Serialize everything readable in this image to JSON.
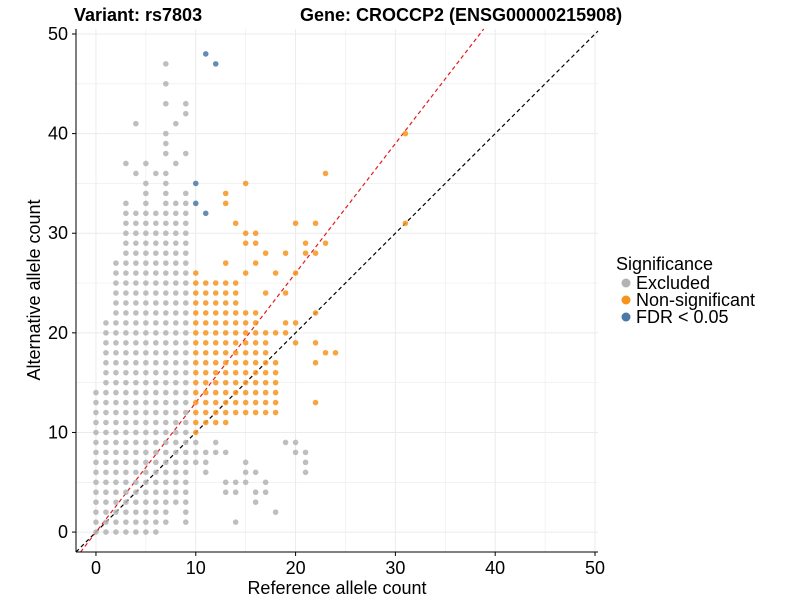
{
  "chart_data": {
    "type": "scatter",
    "title_left": "Variant: rs7803",
    "title_right": "Gene: CROCCP2 (ENSG00000215908)",
    "xlabel": "Reference allele count",
    "ylabel": "Alternative allele count",
    "xlim": [
      -2,
      50.3
    ],
    "ylim": [
      -2,
      50.5
    ],
    "xticks": [
      0,
      10,
      20,
      30,
      40,
      50
    ],
    "yticks": [
      0,
      10,
      20,
      30,
      40,
      50
    ],
    "grid": true,
    "legend": {
      "title": "Significance",
      "placement": "right",
      "entries": [
        {
          "label": "Excluded",
          "color": "#b3b3b3"
        },
        {
          "label": "Non-significant",
          "color": "#f7941d"
        },
        {
          "label": "FDR < 0.05",
          "color": "#4a78a8"
        }
      ]
    },
    "reference_lines": [
      {
        "name": "y = x",
        "color": "#000000",
        "slope": 1,
        "intercept": 0
      },
      {
        "name": "ratio",
        "color": "#e41a1c",
        "slope": 1.3,
        "intercept": 0
      }
    ],
    "series": [
      {
        "name": "Excluded",
        "color": "#b3b3b3",
        "columns": [
          {
            "x": 0,
            "y_min": 0,
            "y_max": 14
          },
          {
            "x": 1,
            "y_min": 0,
            "y_max": 21
          },
          {
            "x": 2,
            "y_min": 0,
            "y_max": 27
          },
          {
            "x": 3,
            "y_min": 0,
            "y_max": 33
          },
          {
            "x": 4,
            "y_min": 0,
            "y_max": 32
          },
          {
            "x": 5,
            "y_min": 0,
            "y_max": 35
          },
          {
            "x": 6,
            "y_min": 0,
            "y_max": 32
          },
          {
            "x": 7,
            "y_min": 1,
            "y_max": 36
          },
          {
            "x": 8,
            "y_min": 3,
            "y_max": 33
          },
          {
            "x": 9,
            "y_min": 1,
            "y_max": 34
          }
        ],
        "extra_points": [
          [
            0,
            6
          ],
          [
            1,
            9
          ],
          [
            3,
            37
          ],
          [
            4,
            41
          ],
          [
            4,
            36
          ],
          [
            5,
            37
          ],
          [
            6,
            0
          ],
          [
            6,
            36
          ],
          [
            7,
            47
          ],
          [
            7,
            45
          ],
          [
            7,
            43
          ],
          [
            7,
            40
          ],
          [
            7,
            39
          ],
          [
            7,
            38
          ],
          [
            9,
            43
          ],
          [
            9,
            42
          ],
          [
            9,
            38
          ],
          [
            8,
            37
          ],
          [
            8,
            41
          ],
          [
            9,
            1
          ],
          [
            10,
            9
          ],
          [
            10,
            8
          ],
          [
            11,
            8
          ],
          [
            11,
            7
          ],
          [
            12,
            9
          ],
          [
            12,
            8
          ],
          [
            13,
            8
          ],
          [
            13,
            5
          ],
          [
            13,
            4
          ],
          [
            14,
            1
          ],
          [
            14,
            4
          ],
          [
            14,
            5
          ],
          [
            15,
            7
          ],
          [
            15,
            6
          ],
          [
            15,
            5
          ],
          [
            16,
            6
          ],
          [
            16,
            3
          ],
          [
            17,
            5
          ],
          [
            17,
            4
          ],
          [
            19,
            9
          ],
          [
            20,
            9
          ],
          [
            20,
            8
          ],
          [
            21,
            8
          ],
          [
            21,
            7
          ],
          [
            16,
            4
          ],
          [
            18,
            2
          ],
          [
            21,
            6
          ],
          [
            10,
            7
          ],
          [
            11,
            6
          ]
        ]
      },
      {
        "name": "Non-significant",
        "color": "#f7941d",
        "columns": [
          {
            "x": 10,
            "y_min": 10,
            "y_max": 26
          },
          {
            "x": 11,
            "y_min": 11,
            "y_max": 25
          },
          {
            "x": 12,
            "y_min": 11,
            "y_max": 25
          },
          {
            "x": 13,
            "y_min": 11,
            "y_max": 25
          },
          {
            "x": 14,
            "y_min": 12,
            "y_max": 23
          },
          {
            "x": 15,
            "y_min": 12,
            "y_max": 22
          },
          {
            "x": 16,
            "y_min": 12,
            "y_max": 21
          },
          {
            "x": 17,
            "y_min": 12,
            "y_max": 19
          },
          {
            "x": 18,
            "y_min": 12,
            "y_max": 17
          }
        ],
        "extra_points": [
          [
            13,
            34
          ],
          [
            13,
            33
          ],
          [
            14,
            31
          ],
          [
            14,
            25
          ],
          [
            14,
            24
          ],
          [
            15,
            35
          ],
          [
            15,
            30
          ],
          [
            15,
            29
          ],
          [
            15,
            26
          ],
          [
            16,
            30
          ],
          [
            16,
            29
          ],
          [
            16,
            27
          ],
          [
            16,
            22
          ],
          [
            17,
            28
          ],
          [
            17,
            24
          ],
          [
            18,
            20
          ],
          [
            18,
            26
          ],
          [
            19,
            28
          ],
          [
            19,
            24
          ],
          [
            19,
            21
          ],
          [
            19,
            20
          ],
          [
            20,
            31
          ],
          [
            20,
            26
          ],
          [
            20,
            21
          ],
          [
            20,
            19
          ],
          [
            21,
            28
          ],
          [
            21,
            29
          ],
          [
            22,
            31
          ],
          [
            22,
            28
          ],
          [
            22,
            22
          ],
          [
            22,
            19
          ],
          [
            22,
            17
          ],
          [
            22,
            13
          ],
          [
            23,
            36
          ],
          [
            23,
            29
          ],
          [
            23,
            18
          ],
          [
            24,
            18
          ],
          [
            31,
            40
          ],
          [
            31,
            31
          ],
          [
            13,
            27
          ],
          [
            17,
            20
          ]
        ]
      },
      {
        "name": "FDR < 0.05",
        "color": "#4a78a8",
        "points": [
          [
            11,
            48
          ],
          [
            12,
            47
          ],
          [
            10,
            35
          ],
          [
            10,
            33
          ],
          [
            11,
            32
          ]
        ]
      }
    ]
  }
}
